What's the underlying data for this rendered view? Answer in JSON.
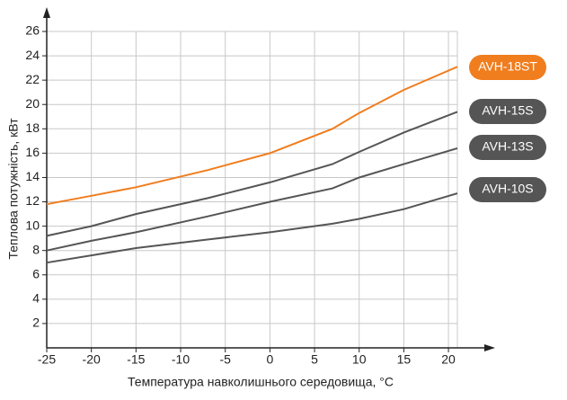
{
  "chart_data": {
    "type": "line",
    "x_label": "Температура навколишнього середовища, °С",
    "y_label": "Теплова потужність, кВт",
    "x": [
      -25,
      -20,
      -15,
      -7,
      0,
      7,
      10,
      15,
      21
    ],
    "series": [
      {
        "name": "AVH-18ST",
        "color": "#f07d1e",
        "values": [
          11.8,
          12.5,
          13.2,
          14.6,
          16,
          18,
          19.3,
          21.2,
          23.1
        ]
      },
      {
        "name": "AVH-15S",
        "color": "#555555",
        "values": [
          9.2,
          10,
          11,
          12.3,
          13.6,
          15.1,
          16.1,
          17.7,
          19.4
        ]
      },
      {
        "name": "AVH-13S",
        "color": "#555555",
        "values": [
          8,
          8.8,
          9.5,
          10.8,
          12,
          13.1,
          14,
          15.1,
          16.4
        ]
      },
      {
        "name": "AVH-10S",
        "color": "#555555",
        "values": [
          7,
          7.6,
          8.2,
          8.9,
          9.5,
          10.2,
          10.6,
          11.4,
          12.7
        ]
      }
    ],
    "xlim": [
      -25,
      21
    ],
    "xticks": [
      -25,
      -20,
      -15,
      -10,
      -5,
      0,
      5,
      10,
      15,
      20
    ],
    "ylim": [
      0,
      26
    ],
    "yticks": [
      2,
      4,
      6,
      8,
      10,
      12,
      14,
      16,
      18,
      20,
      22,
      24,
      26
    ],
    "grid": true
  }
}
